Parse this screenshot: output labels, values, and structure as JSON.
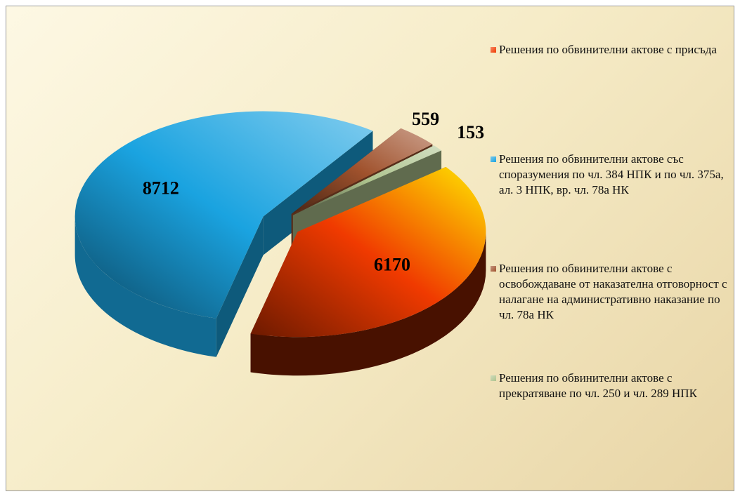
{
  "chart_data": {
    "type": "pie3d",
    "categories": [
      "Решения по обвинителни актове с присъда",
      "Решения по обвинителни актове със споразумения по чл. 384 НПК и по чл. 375а, ал. 3 НПК, вр. чл. 78а НК",
      "Решения по обвинителни актове с освобождаване от наказателна отговорност с налагане на административно наказание по чл. 78а НК",
      "Решения по обвинителни актове с прекратяване по чл. 250 и чл. 289 НПК"
    ],
    "values": [
      6170,
      8712,
      559,
      153
    ],
    "colors": [
      "#f03a00",
      "#1aa3e0",
      "#a0522d",
      "#aec38e"
    ]
  }
}
